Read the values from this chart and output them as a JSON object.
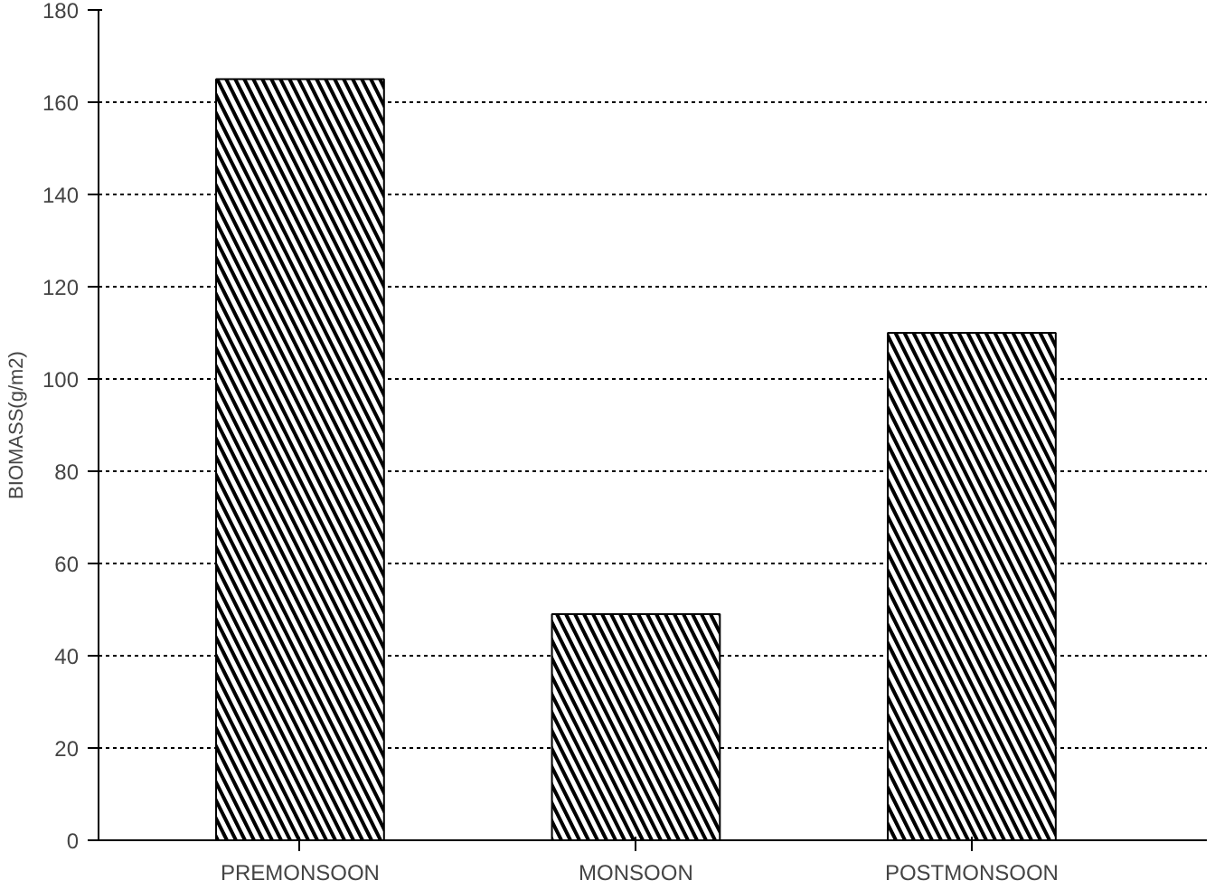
{
  "chart_data": {
    "type": "bar",
    "ylabel": "BIOMASS(g/m2)",
    "categories": [
      "PREMONSOON",
      "MONSOON",
      "POSTMONSOON"
    ],
    "values": [
      165,
      49,
      110
    ],
    "color": "#ffffff",
    "ylim": [
      0,
      180
    ],
    "yticks": [
      0,
      20,
      40,
      60,
      80,
      100,
      120,
      140,
      160,
      180
    ],
    "grid": "y"
  }
}
